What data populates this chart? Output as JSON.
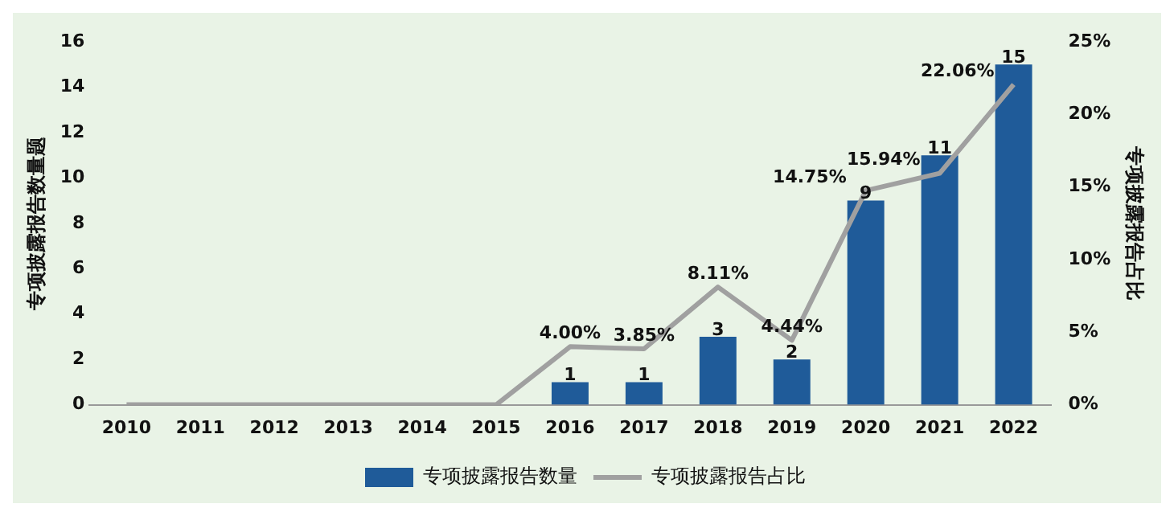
{
  "chart_data": {
    "type": "bar",
    "categories": [
      "2010",
      "2011",
      "2012",
      "2013",
      "2014",
      "2015",
      "2016",
      "2017",
      "2018",
      "2019",
      "2020",
      "2021",
      "2022"
    ],
    "series": [
      {
        "name": "专项披露报告数量",
        "color": "#1f5b99",
        "values": [
          0,
          0,
          0,
          0,
          0,
          0,
          1,
          1,
          3,
          2,
          9,
          11,
          15
        ],
        "value_labels": [
          null,
          null,
          null,
          null,
          null,
          null,
          "1",
          "1",
          "3",
          "2",
          "9",
          "11",
          "15"
        ]
      },
      {
        "type": "line",
        "name": "专项披露报告占比",
        "color": "#a0a0a0",
        "axis": "y2",
        "values": [
          0,
          0,
          0,
          0,
          0,
          0,
          4.0,
          3.85,
          8.11,
          4.44,
          14.75,
          15.94,
          22.06
        ],
        "value_labels": [
          null,
          null,
          null,
          null,
          null,
          null,
          "4.00%",
          "3.85%",
          "8.11%",
          "4.44%",
          "14.75%",
          "15.94%",
          "22.06%"
        ]
      }
    ],
    "ylabel": "专项披露报告数量题",
    "y2label": "专项披露报告占比",
    "ylim": [
      0,
      16
    ],
    "yticks": [
      0,
      2,
      4,
      6,
      8,
      10,
      12,
      14,
      16
    ],
    "y2lim": [
      0,
      25
    ],
    "y2ticks": [
      {
        "value": 0,
        "label": "0%"
      },
      {
        "value": 5,
        "label": "5%"
      },
      {
        "value": 10,
        "label": "10%"
      },
      {
        "value": 15,
        "label": "15%"
      },
      {
        "value": 20,
        "label": "20%"
      },
      {
        "value": 25,
        "label": "25%"
      }
    ],
    "legend": "bottom"
  }
}
